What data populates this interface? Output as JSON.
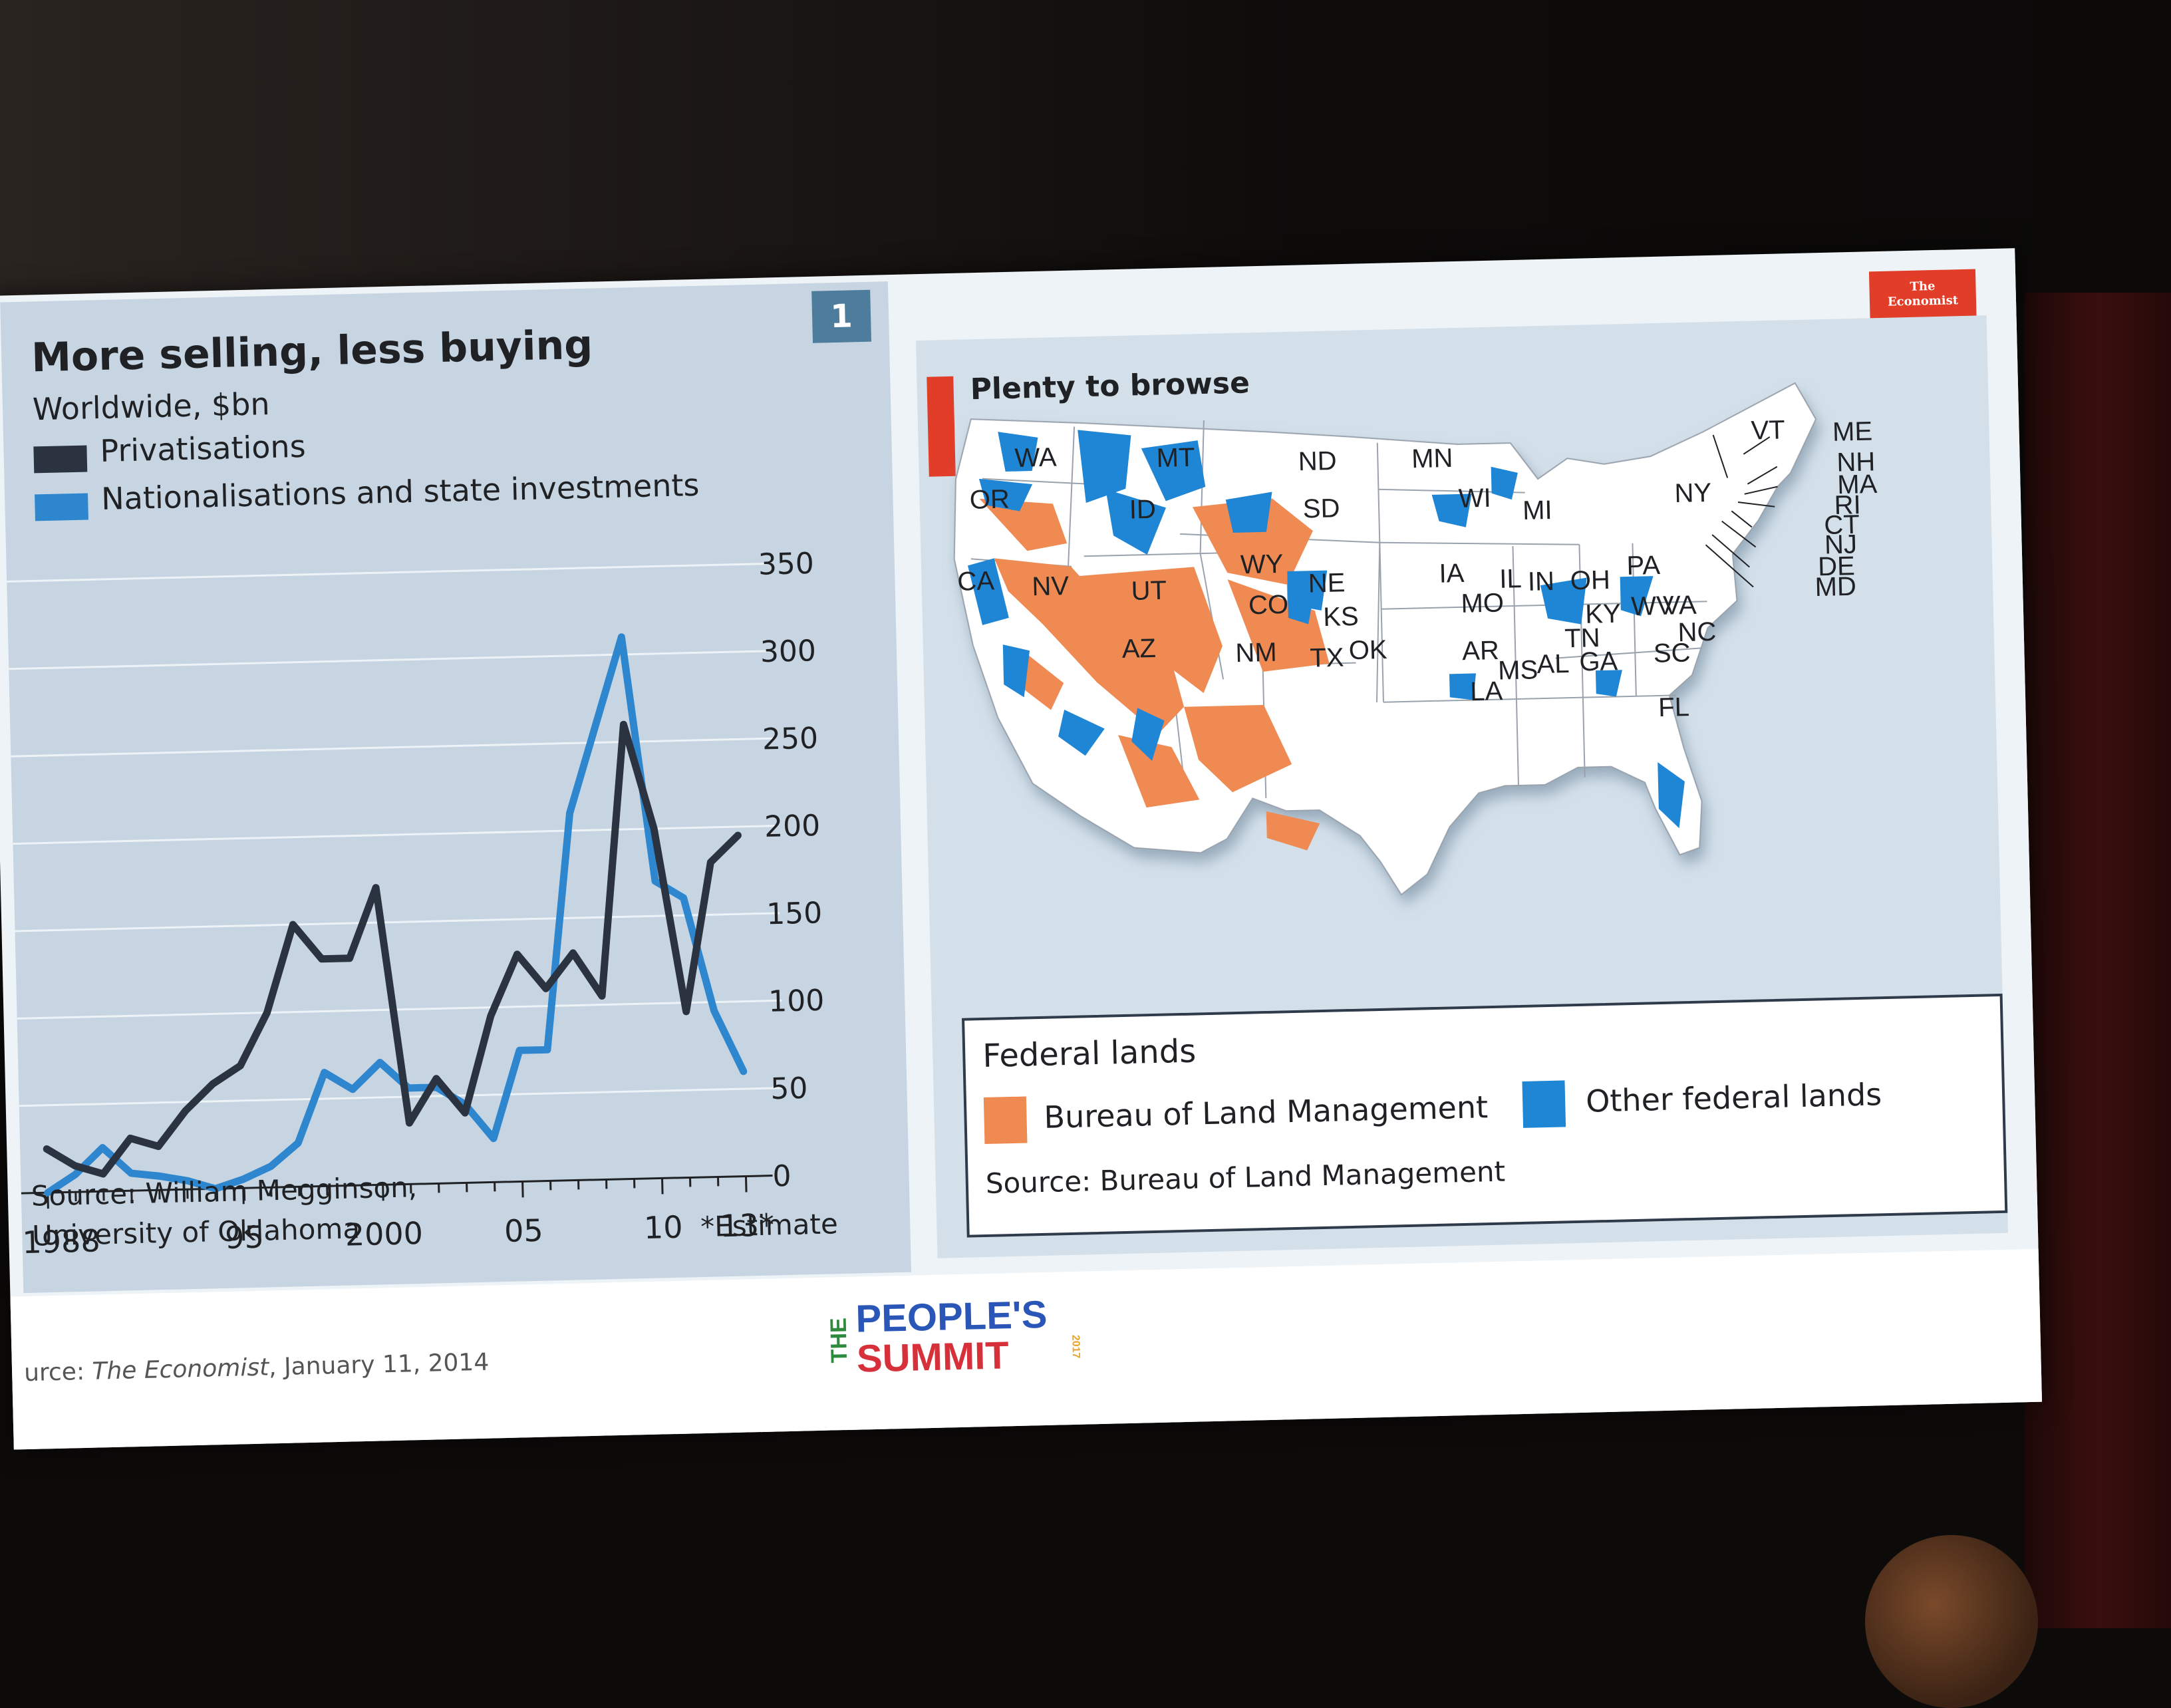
{
  "left_panel": {
    "badge": "1",
    "title": "More selling, less buying",
    "subtitle": "Worldwide, $bn",
    "source_line1": "Source: William Megginson,",
    "source_line2": "University of Oklahoma",
    "footnote": "*Estimate"
  },
  "chart_data": {
    "type": "line",
    "title": "More selling, less buying",
    "subtitle": "Worldwide, $bn",
    "xlabel": "",
    "ylabel": "",
    "x": [
      1988,
      1989,
      1990,
      1991,
      1992,
      1993,
      1994,
      1995,
      1996,
      1997,
      1998,
      1999,
      2000,
      2001,
      2002,
      2003,
      2004,
      2005,
      2006,
      2007,
      2008,
      2009,
      2010,
      2011,
      2012,
      2013
    ],
    "x_tick_labels": [
      "1988",
      "95",
      "2000",
      "05",
      "10",
      "13*"
    ],
    "x_tick_years": [
      1988,
      1995,
      2000,
      2005,
      2010,
      2013
    ],
    "ylim": [
      0,
      350
    ],
    "y_ticks": [
      0,
      50,
      100,
      150,
      200,
      250,
      300,
      350
    ],
    "grid": true,
    "legend_position": "top-left",
    "colors": {
      "privatisations": "#2b3240",
      "nationalisations": "#2e86cf"
    },
    "series": [
      {
        "name": "Privatisations",
        "key": "privatisations",
        "values": [
          25,
          15,
          10,
          30,
          25,
          45,
          60,
          70,
          100,
          150,
          130,
          130,
          170,
          35,
          60,
          40,
          95,
          130,
          110,
          130,
          105,
          260,
          200,
          95,
          180,
          195
        ]
      },
      {
        "name": "Nationalisations and state investments",
        "key": "nationalisations",
        "values": [
          0,
          10,
          25,
          10,
          8,
          5,
          0,
          5,
          12,
          25,
          65,
          55,
          70,
          55,
          55,
          45,
          25,
          75,
          75,
          210,
          260,
          310,
          170,
          160,
          95,
          60
        ]
      }
    ]
  },
  "right_panel": {
    "brand": [
      "The",
      "Economist"
    ],
    "title": "Plenty to browse",
    "state_labels": [
      "WA",
      "MT",
      "ND",
      "MN",
      "OR",
      "ID",
      "SD",
      "WI",
      "MI",
      "NY",
      "VT",
      "ME",
      "NH",
      "MA",
      "RI",
      "CT",
      "NJ",
      "DE",
      "MD",
      "CA",
      "NV",
      "UT",
      "WY",
      "NE",
      "IA",
      "IL",
      "IN",
      "OH",
      "PA",
      "CO",
      "KS",
      "MO",
      "KY",
      "WV",
      "VA",
      "NC",
      "AZ",
      "NM",
      "TX",
      "OK",
      "AR",
      "TN",
      "SC",
      "MS",
      "AL",
      "GA",
      "LA",
      "FL"
    ],
    "legend_title": "Federal lands",
    "legend_items": [
      {
        "label": "Bureau of Land Management",
        "color": "#ee8a52"
      },
      {
        "label": "Other federal lands",
        "color": "#1f86d6"
      }
    ],
    "source": "Source: Bureau of Land Management"
  },
  "footer": {
    "source_prefix": "urce: ",
    "source_publication": "The Economist",
    "source_date": ", January 11, 2014",
    "logo_the": "THE",
    "logo_line1": "PEOPLE'S",
    "logo_line2": "SUMMIT",
    "logo_year": "2017"
  }
}
